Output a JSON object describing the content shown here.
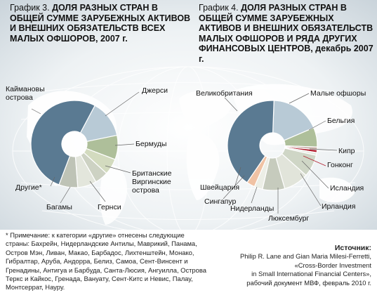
{
  "chart1": {
    "number": "График 3.",
    "title": "ДОЛЯ РАЗНЫХ СТРАН В ОБЩЕЙ СУММЕ ЗАРУБЕЖНЫХ АКТИВОВ И ВНЕШНИХ ОБЯЗАТЕЛЬСТВ ВСЕХ МАЛЫХ ОФШОРОВ, 2007 г."
  },
  "chart2": {
    "number": "График 4.",
    "title": "ДОЛЯ РАЗНЫХ СТРАН В ОБЩЕЙ СУММЕ ЗАРУБЕЖНЫХ АКТИВОВ И ВНЕШНИХ ОБЯЗАТЕЛЬСТВ МАЛЫХ ОФШОРОВ И РЯДА ДРУГИХ ФИНАНСОВЫХ ЦЕНТРОВ, декабрь 2007 г."
  },
  "chart_data": [
    {
      "type": "pie",
      "title": "ДОЛЯ РАЗНЫХ СТРАН В ОБЩЕЙ СУММЕ ЗАРУБЕЖНЫХ АКТИВОВ И ВНЕШНИХ ОБЯЗАТЕЛЬСТВ ВСЕХ МАЛЫХ ОФШОРОВ, 2007 г.",
      "categories": [
        "Джерси",
        "Бермуды",
        "Британские Виргинские острова",
        "Гернси",
        "Багамы",
        "Другие*",
        "Каймановы острова"
      ],
      "values": [
        14,
        9,
        6,
        5,
        7,
        7,
        52
      ],
      "colors": [
        "#b8cad6",
        "#aebf9a",
        "#d3dbbf",
        "#cdd2c3",
        "#e3e6dc",
        "#bec3b6",
        "#5a7a92"
      ]
    },
    {
      "type": "pie",
      "title": "ДОЛЯ РАЗНЫХ СТРАН В ОБЩЕЙ СУММЕ ЗАРУБЕЖНЫХ АКТИВОВ И ВНЕШНИХ ОБЯЗАТЕЛЬСТВ МАЛЫХ ОФШОРОВ И РЯДА ДРУГИХ ФИНАНСОВЫХ ЦЕНТРОВ, декабрь 2007 г.",
      "categories": [
        "Малые офшоры",
        "Бельгия",
        "Кипр",
        "Гонконг",
        "Исландия",
        "Ирландия",
        "Люксембург",
        "Нидерланды",
        "Сингапур",
        "Швейцария",
        "Великобритания"
      ],
      "values": [
        18,
        7,
        1,
        1,
        1,
        8,
        9,
        8,
        3,
        3,
        41
      ],
      "colors": [
        "#b8cad6",
        "#aebf9a",
        "#c9b0a8",
        "#b01e2e",
        "#e7ebe2",
        "#cfd6c6",
        "#e1e4da",
        "#c6cbbd",
        "#eceee6",
        "#f0c2a4",
        "#5a7a92"
      ]
    }
  ],
  "footnote": "* Примечание: к категории «другие» отнесены следующие страны: Бахрейн, Нидерландские Антилы, Маврикий, Панама, Остров Мэн, Ливан, Макао, Барбадос, Лихтенштейн, Монако, Гибралтар, Аруба, Андорра, Белиз, Самоа, Сент-Винсент и Гренадины, Антигуа и Барбуда, Санта-Люсия, Ангуилла, Острова Теркс и Кайкос, Гренада, Вануату, Сент-Китс и Невис, Палау, Монтсеррат, Науру.",
  "source": {
    "heading": "Источник:",
    "text": "Philip R. Lane and Gian Maria Milesi-Ferretti,\n«Cross-Border Investment\nin Small International Financial Centers»,\nрабочий документ МВФ, февраль 2010 г."
  }
}
